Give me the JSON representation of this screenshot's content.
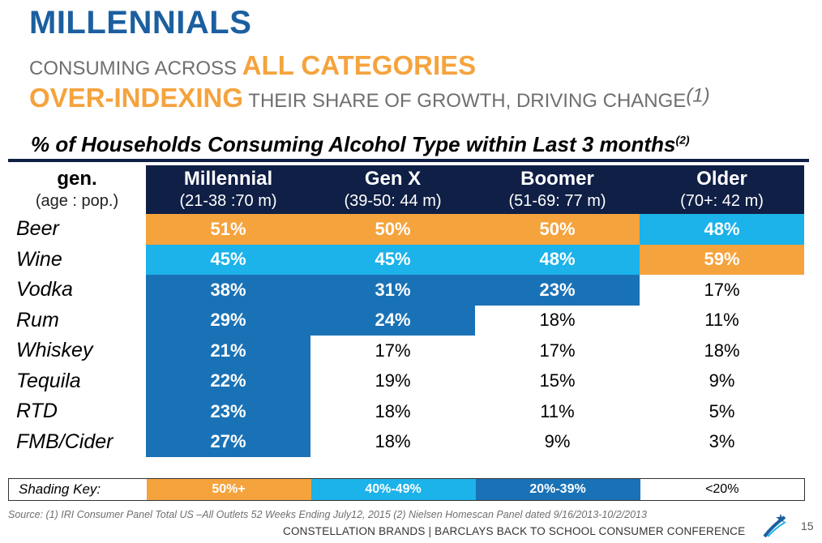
{
  "title": "MILLENNIALS",
  "line2": {
    "prefix": "CONSUMING ACROSS ",
    "highlight": "ALL CATEGORIES"
  },
  "line3": {
    "highlight": "OVER-INDEXING",
    "suffix": " THEIR SHARE OF GROWTH, DRIVING CHANGE",
    "footnote": "(1)"
  },
  "subtitle": {
    "text": "% of Households Consuming Alcohol Type within Last 3 months",
    "footnote": "(2)"
  },
  "table": {
    "gen_header": {
      "name": "gen.",
      "sub": "(age : pop.)"
    },
    "columns": [
      {
        "name": "Millennial",
        "sub": "(21-38 :70 m)"
      },
      {
        "name": "Gen X",
        "sub": "(39-50: 44 m)"
      },
      {
        "name": "Boomer",
        "sub": "(51-69: 77 m)"
      },
      {
        "name": "Older",
        "sub": "(70+: 42 m)"
      }
    ],
    "rows": [
      {
        "label": "Beer",
        "values": [
          "51%",
          "50%",
          "50%",
          "48%"
        ]
      },
      {
        "label": "Wine",
        "values": [
          "45%",
          "45%",
          "48%",
          "59%"
        ]
      },
      {
        "label": "Vodka",
        "values": [
          "38%",
          "31%",
          "23%",
          "17%"
        ]
      },
      {
        "label": "Rum",
        "values": [
          "29%",
          "24%",
          "18%",
          "11%"
        ]
      },
      {
        "label": "Whiskey",
        "values": [
          "21%",
          "17%",
          "17%",
          "18%"
        ]
      },
      {
        "label": "Tequila",
        "values": [
          "22%",
          "19%",
          "15%",
          "9%"
        ]
      },
      {
        "label": "RTD",
        "values": [
          "23%",
          "18%",
          "11%",
          "5%"
        ]
      },
      {
        "label": "FMB/Cider",
        "values": [
          "27%",
          "18%",
          "9%",
          "3%"
        ]
      }
    ]
  },
  "shading_key": {
    "label": "Shading Key:",
    "items": [
      "50%+",
      "40%-49%",
      "20%-39%",
      "<20%"
    ]
  },
  "colors": {
    "title_blue": "#1b5fa0",
    "orange": "#f5a33d",
    "light_blue": "#1cb2ea",
    "mid_blue": "#1a72b6",
    "navy": "#0f1f45"
  },
  "source": "Source:  (1) IRI Consumer Panel Total US –All Outlets 52 Weeks Ending July12, 2015  (2) Nielsen Homescan Panel dated 9/16/2013-10/2/2013",
  "footer": "CONSTELLATION BRANDS | BARCLAYS BACK TO SCHOOL CONSUMER CONFERENCE",
  "page_number": "15",
  "logo_icon": "star-logo-icon"
}
